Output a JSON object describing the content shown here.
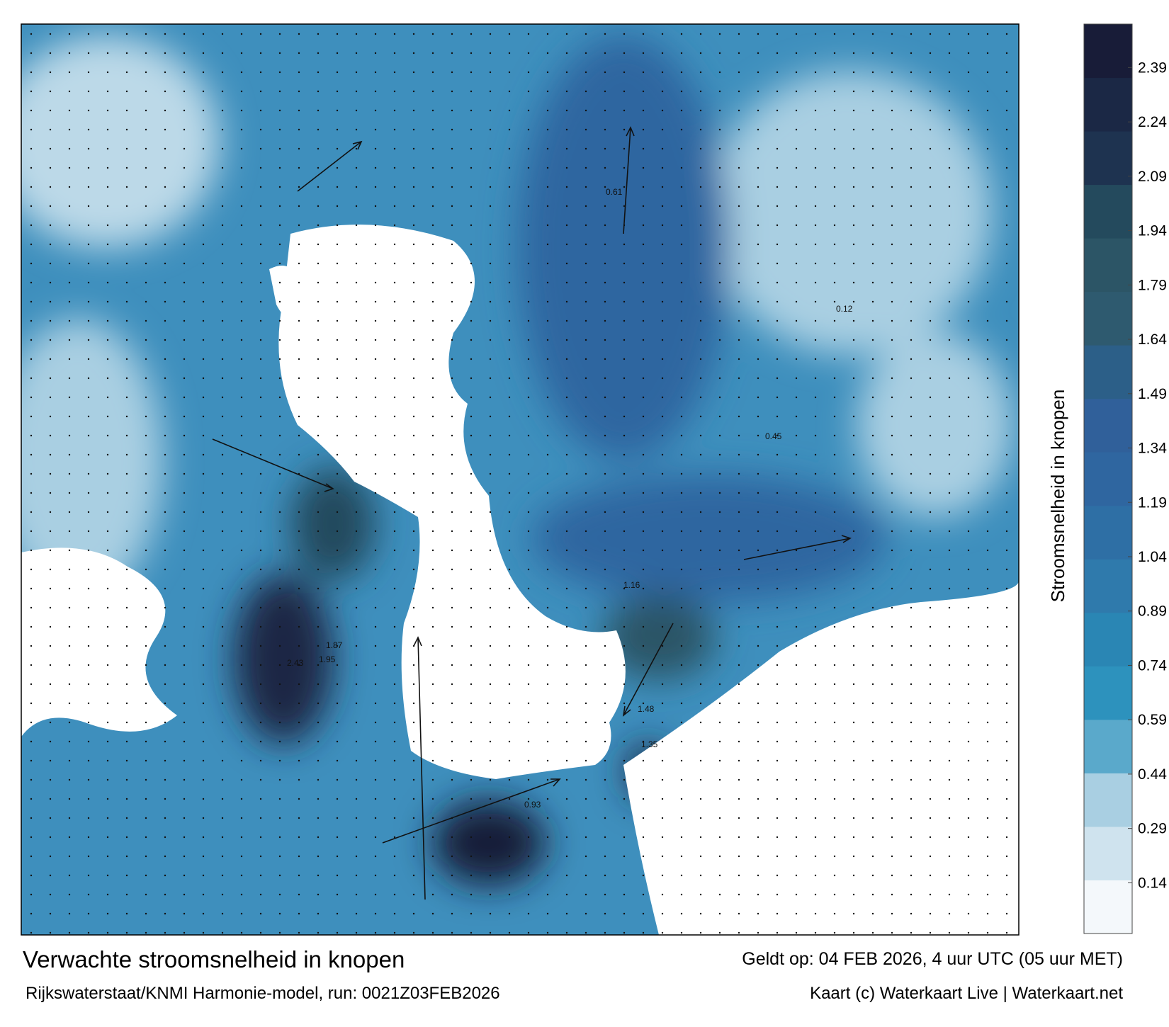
{
  "map": {
    "title": "Verwachte stroomsnelheid in knopen",
    "valid_time": "Geldt op: 04 FEB 2026, 4 uur UTC (05 uur MET)",
    "model_run": "Rijkswaterstaat/KNMI Harmonie-model, run: 0021Z03FEB2026",
    "credit": "Kaart (c) Waterkaart Live | Waterkaart.net",
    "colorbar": {
      "label": "Stroomsnelheid in knopen",
      "clim": [
        0,
        2.51
      ],
      "ticks": [
        0.14,
        0.29,
        0.44,
        0.59,
        0.74,
        0.89,
        1.04,
        1.19,
        1.34,
        1.49,
        1.64,
        1.79,
        1.94,
        2.09,
        2.24,
        2.39
      ],
      "colors": [
        "#f4f8fb",
        "#cfe3ee",
        "#a9cfe2",
        "#5aa9cb",
        "#2d92bd",
        "#2a86b4",
        "#2f7aac",
        "#2e6fa5",
        "#2f66a0",
        "#30609a",
        "#2c5f88",
        "#2e5a6f",
        "#2c5566",
        "#244a5d",
        "#1e3350",
        "#1b2845",
        "#181c38"
      ]
    },
    "samples": [
      {
        "label": "2.43",
        "value": 2.43
      },
      {
        "label": "1.87",
        "value": 1.87
      },
      {
        "label": "1.95",
        "value": 1.95
      },
      {
        "label": "1.48",
        "value": 1.48
      },
      {
        "label": "1.35",
        "value": 1.35
      },
      {
        "label": "1.16",
        "value": 1.16
      },
      {
        "label": "0.93",
        "value": 0.93
      },
      {
        "label": "0.61",
        "value": 0.61
      },
      {
        "label": "0.45",
        "value": 0.45
      },
      {
        "label": "0.12",
        "value": 0.12
      }
    ]
  }
}
